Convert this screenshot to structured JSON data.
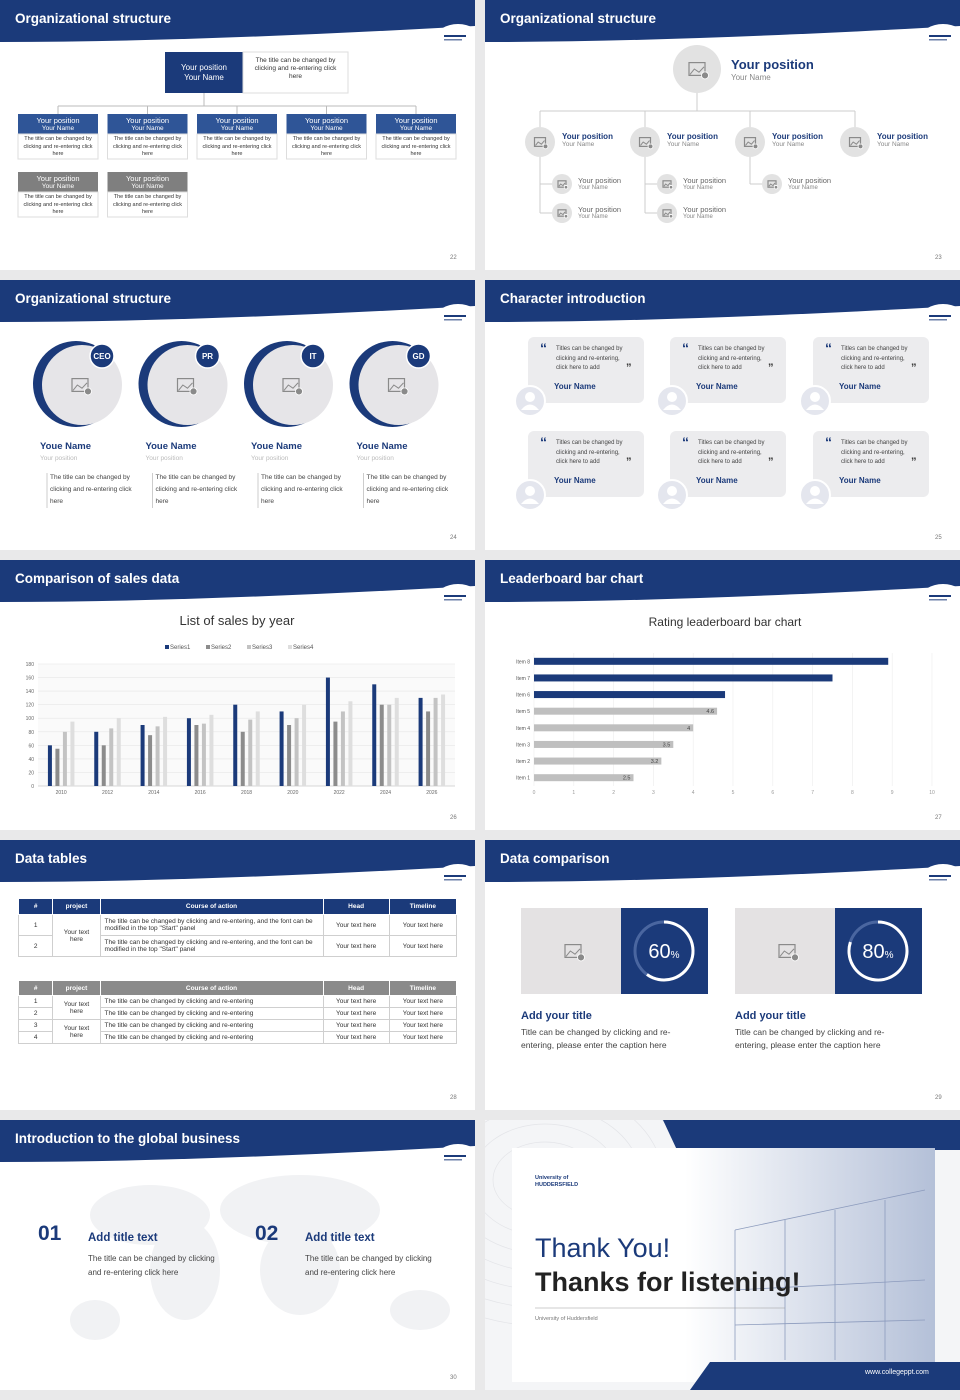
{
  "slides": [
    {
      "title": "Organizational structure",
      "page": "22",
      "head": {
        "position": "Your position",
        "name": "Your Name",
        "note": "The title can be changed by clicking and re-entering click here"
      },
      "members": [
        {
          "position": "Your position",
          "name": "Your Name",
          "text": "The title can be changed by clicking and re-entering click here"
        },
        {
          "position": "Your position",
          "name": "Your Name",
          "text": "The title can be changed by clicking and re-entering click here"
        },
        {
          "position": "Your position",
          "name": "Your Name",
          "text": "The title can be changed by clicking and re-entering click here"
        },
        {
          "position": "Your position",
          "name": "Your Name",
          "text": "The title can be changed by clicking and re-entering click here"
        },
        {
          "position": "Your position",
          "name": "Your Name",
          "text": "The title can be changed by clicking and re-entering click here"
        },
        {
          "position": "Your position",
          "name": "Your Name",
          "text": "The title can be changed by clicking and re-entering click here"
        },
        {
          "position": "Your position",
          "name": "Your Name",
          "text": "The title can be changed by clicking and re-entering click here"
        }
      ]
    },
    {
      "title": "Organizational structure",
      "page": "23",
      "head": {
        "position": "Your position",
        "name": "Your Name"
      },
      "groups": [
        {
          "position": "Your position",
          "name": "Your Name",
          "children": [
            {
              "position": "Your position",
              "name": "Your Name"
            },
            {
              "position": "Your position",
              "name": "Your Name"
            }
          ]
        },
        {
          "position": "Your position",
          "name": "Your Name",
          "children": [
            {
              "position": "Your position",
              "name": "Your Name"
            },
            {
              "position": "Your position",
              "name": "Your Name"
            }
          ]
        },
        {
          "position": "Your position",
          "name": "Your Name",
          "children": [
            {
              "position": "Your position",
              "name": "Your Name"
            }
          ]
        },
        {
          "position": "Your position",
          "name": "Your Name",
          "children": []
        }
      ]
    },
    {
      "title": "Organizational structure",
      "page": "24",
      "people": [
        {
          "badge": "CEO",
          "name": "Youe Name",
          "position": "Your position",
          "text": "The title can be changed by clicking and re-entering click here"
        },
        {
          "badge": "PR",
          "name": "Youe Name",
          "position": "Your position",
          "text": "The title can be changed by clicking and re-entering click here"
        },
        {
          "badge": "IT",
          "name": "Youe Name",
          "position": "Your position",
          "text": "The title can be changed by clicking and re-entering click here"
        },
        {
          "badge": "GD",
          "name": "Youe Name",
          "position": "Your position",
          "text": "The title can be changed by clicking and re-entering click here"
        }
      ]
    },
    {
      "title": "Character introduction",
      "page": "25",
      "cards": [
        {
          "text": "Titles can be changed by clicking and re-entering, click here to add",
          "name": "Your Name"
        },
        {
          "text": "Titles can be changed by clicking and re-entering, click here to add",
          "name": "Your Name"
        },
        {
          "text": "Titles can be changed by clicking and re-entering, click here to add",
          "name": "Your Name"
        },
        {
          "text": "Titles can be changed by clicking and re-entering, click here to add",
          "name": "Your Name"
        },
        {
          "text": "Titles can be changed by clicking and re-entering, click here to add",
          "name": "Your Name"
        },
        {
          "text": "Titles can be changed by clicking and re-entering, click here to add",
          "name": "Your Name"
        }
      ]
    },
    {
      "title": "Comparison of sales data",
      "page": "26"
    },
    {
      "title": "Leaderboard bar chart",
      "page": "27"
    },
    {
      "title": "Data tables",
      "page": "28",
      "tables": [
        {
          "header": [
            "#",
            "project",
            "Course of action",
            "Head",
            "Timeline"
          ],
          "groups": [
            {
              "project": "Your text here",
              "rows": [
                [
                  "1",
                  "The title can be changed by clicking and re-entering, and the font can be modified in the top \"Start\" panel",
                  "Your text here",
                  "Your text here"
                ],
                [
                  "2",
                  "The title can be changed by clicking and re-entering, and the font can be modified in the top \"Start\" panel",
                  "Your text here",
                  "Your text here"
                ]
              ]
            }
          ]
        },
        {
          "header": [
            "#",
            "project",
            "Course of action",
            "Head",
            "Timeline"
          ],
          "groups": [
            {
              "project": "Your text here",
              "rows": [
                [
                  "1",
                  "The title can be changed by clicking and re-entering",
                  "Your text here",
                  "Your text here"
                ],
                [
                  "2",
                  "The title can be changed by clicking and re-entering",
                  "Your text here",
                  "Your text here"
                ]
              ]
            },
            {
              "project": "Your text here",
              "rows": [
                [
                  "3",
                  "The title can be changed by clicking and re-entering",
                  "Your text here",
                  "Your text here"
                ],
                [
                  "4",
                  "The title can be changed by clicking and re-entering",
                  "Your text here",
                  "Your text here"
                ]
              ]
            }
          ]
        }
      ]
    },
    {
      "title": "Data comparison",
      "page": "29",
      "items": [
        {
          "value": 60,
          "unit": "%",
          "title": "Add your title",
          "text": "Title can be changed by clicking and re-entering, please enter the caption here"
        },
        {
          "value": 80,
          "unit": "%",
          "title": "Add your title",
          "text": "Title can be changed by clicking and re-entering, please enter the caption here"
        }
      ]
    },
    {
      "title": "Introduction to the global business",
      "page": "30",
      "items": [
        {
          "number": "01",
          "title": "Add title text",
          "text": "The title can be changed by clicking and re-entering click here"
        },
        {
          "number": "02",
          "title": "Add title text",
          "text": "The title can be changed by clicking and re-entering click here"
        }
      ]
    },
    {
      "logo": "University of HUDDERSFIELD",
      "line1": "Thank You!",
      "line2": "Thanks for listening!",
      "org": "University of Huddersfield",
      "url": "www.collegeppt.com"
    }
  ],
  "chart_data": [
    {
      "type": "bar",
      "title": "List of sales by year",
      "categories": [
        "2010",
        "2012",
        "2014",
        "2016",
        "2018",
        "2020",
        "2022",
        "2024",
        "2026"
      ],
      "series": [
        {
          "name": "Series1",
          "color": "#1b3a7a",
          "values": [
            60,
            80,
            90,
            100,
            120,
            110,
            160,
            150,
            130
          ]
        },
        {
          "name": "Series2",
          "color": "#8c8c8c",
          "values": [
            55,
            60,
            75,
            90,
            80,
            90,
            95,
            120,
            110
          ]
        },
        {
          "name": "Series3",
          "color": "#c3c3c3",
          "values": [
            80,
            85,
            88,
            92,
            98,
            100,
            110,
            120,
            130
          ]
        },
        {
          "name": "Series4",
          "color": "#dedede",
          "values": [
            95,
            100,
            102,
            105,
            110,
            120,
            125,
            130,
            135
          ]
        }
      ],
      "ylim": [
        0,
        180
      ],
      "yticks": [
        0,
        20,
        40,
        60,
        80,
        100,
        120,
        140,
        160,
        180
      ],
      "grid": true,
      "legend": "top"
    },
    {
      "type": "barh",
      "title": "Rating leaderboard bar chart",
      "categories": [
        "Item 1",
        "Item 2",
        "Item 3",
        "Item 4",
        "Item 5",
        "Item 6",
        "Item 7",
        "Item 8"
      ],
      "values": [
        2.5,
        3.2,
        3.5,
        4,
        4.6,
        4.8,
        7.5,
        8.9
      ],
      "value_labels": [
        "2.5",
        "3.2",
        "3.5",
        "4",
        "4.6",
        null,
        null,
        null
      ],
      "colors": [
        "#bfbfbf",
        "#bfbfbf",
        "#bfbfbf",
        "#bfbfbf",
        "#bfbfbf",
        "#1b3a7a",
        "#1b3a7a",
        "#1b3a7a"
      ],
      "xlim": [
        0,
        10
      ],
      "xticks": [
        0,
        1,
        2,
        3,
        4,
        5,
        6,
        7,
        8,
        9,
        10
      ],
      "grid": true
    }
  ]
}
